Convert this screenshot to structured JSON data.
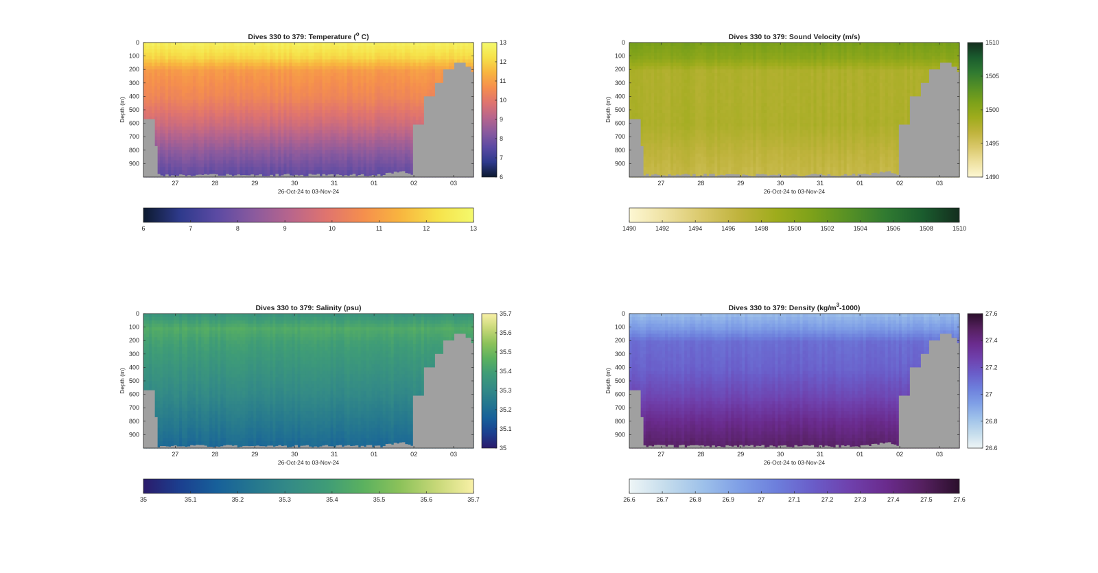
{
  "figure": {
    "background": "#ffffff",
    "land_color": "#a0a0a0"
  },
  "chart_data": [
    {
      "type": "heatmap",
      "id": "temperature",
      "title_text": "Dives 330 to 379: Temperature (",
      "title_sup": "o",
      "title_end": " C)",
      "ylabel": "Depth (m)",
      "xlabel": "26-Oct-24 to 03-Nov-24",
      "y_ticks": [
        "0",
        "100",
        "200",
        "300",
        "400",
        "500",
        "600",
        "700",
        "800",
        "900"
      ],
      "y_range": [
        0,
        1000
      ],
      "x_ticks": [
        "27",
        "28",
        "29",
        "30",
        "31",
        "01",
        "02",
        "03"
      ],
      "x_tick_values": [
        27,
        28,
        29,
        30,
        31,
        32,
        33,
        34
      ],
      "x_range": [
        26.2,
        34.5
      ],
      "colorbar": {
        "ticks": [
          "6",
          "7",
          "8",
          "9",
          "10",
          "11",
          "12",
          "13"
        ],
        "min": 6,
        "max": 13
      },
      "h_colorbar": {
        "ticks": [
          "6",
          "7",
          "8",
          "9",
          "10",
          "11",
          "12",
          "13"
        ]
      },
      "colormap": [
        "#0d1a2f",
        "#2e3a8c",
        "#5b4aa3",
        "#8a5a9e",
        "#b8658c",
        "#e0746e",
        "#f58f4d",
        "#f8b53f",
        "#f6e24a",
        "#f4f96c"
      ],
      "profile": [
        {
          "depth": 0,
          "value": 12.6
        },
        {
          "depth": 100,
          "value": 12.0
        },
        {
          "depth": 200,
          "value": 10.9
        },
        {
          "depth": 400,
          "value": 10.4
        },
        {
          "depth": 600,
          "value": 9.5
        },
        {
          "depth": 800,
          "value": 8.4
        },
        {
          "depth": 1000,
          "value": 7.5
        }
      ]
    },
    {
      "type": "heatmap",
      "id": "sound_velocity",
      "title_text": "Dives 330 to 379: Sound Velocity (m/s)",
      "title_sup": "",
      "title_end": "",
      "ylabel": "Depth (m)",
      "xlabel": "26-Oct-24 to 03-Nov-24",
      "y_ticks": [
        "0",
        "100",
        "200",
        "300",
        "400",
        "500",
        "600",
        "700",
        "800",
        "900"
      ],
      "y_range": [
        0,
        1000
      ],
      "x_ticks": [
        "27",
        "28",
        "29",
        "30",
        "31",
        "01",
        "02",
        "03"
      ],
      "x_tick_values": [
        27,
        28,
        29,
        30,
        31,
        32,
        33,
        34
      ],
      "x_range": [
        26.2,
        34.5
      ],
      "colorbar": {
        "ticks": [
          "1490",
          "1495",
          "1500",
          "1505",
          "1510"
        ],
        "min": 1490,
        "max": 1510
      },
      "h_colorbar": {
        "ticks": [
          "1490",
          "1492",
          "1494",
          "1496",
          "1498",
          "1500",
          "1502",
          "1504",
          "1506",
          "1508",
          "1510"
        ]
      },
      "colormap": [
        "#fdf7d3",
        "#eee1a0",
        "#d9c86a",
        "#bfb33c",
        "#9eac1c",
        "#7ca11a",
        "#559025",
        "#307a31",
        "#1a5c2e",
        "#142e1e"
      ],
      "profile": [
        {
          "depth": 0,
          "value": 1501.2
        },
        {
          "depth": 100,
          "value": 1500.2
        },
        {
          "depth": 200,
          "value": 1497.8
        },
        {
          "depth": 400,
          "value": 1497.8
        },
        {
          "depth": 600,
          "value": 1497.9
        },
        {
          "depth": 800,
          "value": 1496.8
        },
        {
          "depth": 1000,
          "value": 1496.0
        }
      ]
    },
    {
      "type": "heatmap",
      "id": "salinity",
      "title_text": "Dives 330 to 379: Salinity (psu)",
      "title_sup": "",
      "title_end": "",
      "ylabel": "Depth (m)",
      "xlabel": "26-Oct-24 to 03-Nov-24",
      "y_ticks": [
        "0",
        "100",
        "200",
        "300",
        "400",
        "500",
        "600",
        "700",
        "800",
        "900"
      ],
      "y_range": [
        0,
        1000
      ],
      "x_ticks": [
        "27",
        "28",
        "29",
        "30",
        "31",
        "01",
        "02",
        "03"
      ],
      "x_tick_values": [
        27,
        28,
        29,
        30,
        31,
        32,
        33,
        34
      ],
      "x_range": [
        26.2,
        34.5
      ],
      "colorbar": {
        "ticks": [
          "35",
          "35.1",
          "35.2",
          "35.3",
          "35.4",
          "35.5",
          "35.6",
          "35.7"
        ],
        "min": 35.0,
        "max": 35.7
      },
      "h_colorbar": {
        "ticks": [
          "35",
          "35.1",
          "35.2",
          "35.3",
          "35.4",
          "35.5",
          "35.6",
          "35.7"
        ]
      },
      "colormap": [
        "#2b1b6b",
        "#1b3f8f",
        "#17609a",
        "#25778f",
        "#348b86",
        "#3f9c77",
        "#5bb15f",
        "#8cc25a",
        "#c7d878",
        "#f8f0a6"
      ],
      "profile": [
        {
          "depth": 0,
          "value": 35.36
        },
        {
          "depth": 100,
          "value": 35.44
        },
        {
          "depth": 200,
          "value": 35.4
        },
        {
          "depth": 400,
          "value": 35.35
        },
        {
          "depth": 600,
          "value": 35.3
        },
        {
          "depth": 800,
          "value": 35.24
        },
        {
          "depth": 1000,
          "value": 35.18
        }
      ]
    },
    {
      "type": "heatmap",
      "id": "density",
      "title_text": "Dives 330 to 379: Density (kg/m",
      "title_sup": "3",
      "title_end": "-1000)",
      "ylabel": "Depth (m)",
      "xlabel": "26-Oct-24 to 03-Nov-24",
      "y_ticks": [
        "0",
        "100",
        "200",
        "300",
        "400",
        "500",
        "600",
        "700",
        "800",
        "900"
      ],
      "y_range": [
        0,
        1000
      ],
      "x_ticks": [
        "27",
        "28",
        "29",
        "30",
        "31",
        "01",
        "02",
        "03"
      ],
      "x_tick_values": [
        27,
        28,
        29,
        30,
        31,
        32,
        33,
        34
      ],
      "x_range": [
        26.2,
        34.5
      ],
      "colorbar": {
        "ticks": [
          "26.6",
          "26.8",
          "27",
          "27.2",
          "27.4",
          "27.6"
        ],
        "min": 26.6,
        "max": 27.6
      },
      "h_colorbar": {
        "ticks": [
          "26.6",
          "26.7",
          "26.8",
          "26.9",
          "27",
          "27.1",
          "27.2",
          "27.3",
          "27.4",
          "27.5",
          "27.6"
        ]
      },
      "colormap": [
        "#eef5f6",
        "#c4dcec",
        "#9ec1ea",
        "#7f9fe6",
        "#6d7fdc",
        "#6a5dc9",
        "#6f41ad",
        "#6a2b8d",
        "#55205f",
        "#2b0f2c"
      ],
      "profile": [
        {
          "depth": 0,
          "value": 26.85
        },
        {
          "depth": 100,
          "value": 26.95
        },
        {
          "depth": 200,
          "value": 27.1
        },
        {
          "depth": 400,
          "value": 27.14
        },
        {
          "depth": 600,
          "value": 27.24
        },
        {
          "depth": 800,
          "value": 27.38
        },
        {
          "depth": 1000,
          "value": 27.48
        }
      ]
    }
  ]
}
